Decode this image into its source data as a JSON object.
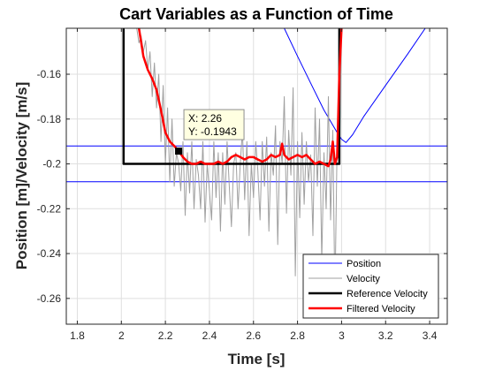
{
  "chart_data": {
    "type": "line",
    "title": "Cart Variables as a Function of Time",
    "xlabel": "Time [s]",
    "ylabel": "Position [m]/Velocity [m/s]",
    "xlim": [
      1.75,
      3.48
    ],
    "ylim": [
      -0.2715,
      -0.1395
    ],
    "xticks": [
      1.8,
      2,
      2.2,
      2.4,
      2.6,
      2.8,
      3,
      3.2,
      3.4
    ],
    "xtick_labels": [
      "1.8",
      "2",
      "2.2",
      "2.4",
      "2.6",
      "2.8",
      "3",
      "3.2",
      "3.4"
    ],
    "yticks": [
      -0.26,
      -0.24,
      -0.22,
      -0.2,
      -0.18,
      -0.16
    ],
    "ytick_labels": [
      "-0.26",
      "-0.24",
      "-0.22",
      "-0.2",
      "-0.18",
      "-0.16"
    ],
    "grid": true,
    "legend_position": "bottom-right",
    "series": [
      {
        "name": "Position",
        "color": "#0000ff",
        "width": 1,
        "segments": [
          [
            [
              1.75,
              -0.192
            ],
            [
              3.48,
              -0.192
            ]
          ],
          [
            [
              1.75,
              -0.208
            ],
            [
              3.48,
              -0.208
            ]
          ],
          [
            [
              2.74,
              -0.1395
            ],
            [
              2.8,
              -0.152
            ],
            [
              2.86,
              -0.164
            ],
            [
              2.92,
              -0.176
            ],
            [
              2.98,
              -0.186
            ],
            [
              3.0,
              -0.189
            ],
            [
              3.02,
              -0.1905
            ],
            [
              3.05,
              -0.187
            ],
            [
              3.1,
              -0.179
            ],
            [
              3.2,
              -0.165
            ],
            [
              3.3,
              -0.151
            ],
            [
              3.38,
              -0.1395
            ]
          ]
        ]
      },
      {
        "name": "Velocity",
        "color": "#a0a0a0",
        "width": 1,
        "segments": [
          [
            [
              2.07,
              -0.1395
            ],
            [
              2.08,
              -0.146
            ],
            [
              2.09,
              -0.143
            ],
            [
              2.1,
              -0.15
            ],
            [
              2.11,
              -0.145
            ],
            [
              2.12,
              -0.158
            ],
            [
              2.13,
              -0.15
            ],
            [
              2.14,
              -0.17
            ],
            [
              2.15,
              -0.155
            ],
            [
              2.16,
              -0.175
            ],
            [
              2.17,
              -0.16
            ],
            [
              2.18,
              -0.19
            ],
            [
              2.19,
              -0.165
            ],
            [
              2.2,
              -0.2
            ],
            [
              2.21,
              -0.175
            ],
            [
              2.22,
              -0.208
            ],
            [
              2.23,
              -0.18
            ],
            [
              2.24,
              -0.21
            ],
            [
              2.25,
              -0.195
            ],
            [
              2.26,
              -0.2
            ],
            [
              2.27,
              -0.212
            ],
            [
              2.28,
              -0.19
            ],
            [
              2.29,
              -0.223
            ],
            [
              2.3,
              -0.195
            ],
            [
              2.31,
              -0.213
            ],
            [
              2.32,
              -0.19
            ],
            [
              2.33,
              -0.22
            ],
            [
              2.34,
              -0.198
            ],
            [
              2.35,
              -0.205
            ],
            [
              2.36,
              -0.22
            ],
            [
              2.37,
              -0.19
            ],
            [
              2.38,
              -0.226
            ],
            [
              2.39,
              -0.2
            ],
            [
              2.4,
              -0.212
            ],
            [
              2.41,
              -0.225
            ],
            [
              2.42,
              -0.19
            ],
            [
              2.43,
              -0.215
            ],
            [
              2.44,
              -0.195
            ],
            [
              2.45,
              -0.23
            ],
            [
              2.46,
              -0.195
            ],
            [
              2.47,
              -0.218
            ],
            [
              2.48,
              -0.19
            ],
            [
              2.49,
              -0.21
            ],
            [
              2.5,
              -0.228
            ],
            [
              2.51,
              -0.2
            ],
            [
              2.52,
              -0.195
            ],
            [
              2.53,
              -0.22
            ],
            [
              2.54,
              -0.2
            ],
            [
              2.55,
              -0.185
            ],
            [
              2.56,
              -0.216
            ],
            [
              2.57,
              -0.19
            ],
            [
              2.58,
              -0.232
            ],
            [
              2.59,
              -0.2
            ],
            [
              2.6,
              -0.215
            ],
            [
              2.61,
              -0.19
            ],
            [
              2.62,
              -0.203
            ],
            [
              2.63,
              -0.225
            ],
            [
              2.64,
              -0.19
            ],
            [
              2.65,
              -0.21
            ],
            [
              2.66,
              -0.188
            ],
            [
              2.67,
              -0.23
            ],
            [
              2.68,
              -0.195
            ],
            [
              2.69,
              -0.205
            ],
            [
              2.7,
              -0.183
            ],
            [
              2.71,
              -0.236
            ],
            [
              2.72,
              -0.19
            ],
            [
              2.73,
              -0.2
            ],
            [
              2.74,
              -0.17
            ],
            [
              2.75,
              -0.222
            ],
            [
              2.76,
              -0.185
            ],
            [
              2.77,
              -0.205
            ],
            [
              2.78,
              -0.166
            ],
            [
              2.79,
              -0.25
            ],
            [
              2.8,
              -0.19
            ],
            [
              2.81,
              -0.224
            ],
            [
              2.82,
              -0.186
            ],
            [
              2.83,
              -0.218
            ],
            [
              2.84,
              -0.19
            ],
            [
              2.85,
              -0.208
            ],
            [
              2.86,
              -0.196
            ],
            [
              2.87,
              -0.232
            ],
            [
              2.88,
              -0.175
            ],
            [
              2.89,
              -0.21
            ],
            [
              2.9,
              -0.18
            ],
            [
              2.91,
              -0.243
            ],
            [
              2.92,
              -0.195
            ],
            [
              2.93,
              -0.22
            ],
            [
              2.94,
              -0.17
            ],
            [
              2.95,
              -0.225
            ],
            [
              2.96,
              -0.185
            ],
            [
              2.97,
              -0.26
            ],
            [
              2.98,
              -0.19
            ],
            [
              2.99,
              -0.2
            ],
            [
              3.0,
              -0.1395
            ]
          ]
        ]
      },
      {
        "name": "Reference Velocity",
        "color": "#000000",
        "width": 2.5,
        "segments": [
          [
            [
              2.01,
              -0.1395
            ],
            [
              2.01,
              -0.2
            ],
            [
              2.99,
              -0.2
            ],
            [
              2.99,
              -0.1395
            ]
          ]
        ]
      },
      {
        "name": "Filtered Velocity",
        "color": "#ff0000",
        "width": 2.5,
        "segments": [
          [
            [
              2.08,
              -0.1395
            ],
            [
              2.1,
              -0.152
            ],
            [
              2.12,
              -0.158
            ],
            [
              2.14,
              -0.162
            ],
            [
              2.16,
              -0.167
            ],
            [
              2.18,
              -0.176
            ],
            [
              2.2,
              -0.186
            ],
            [
              2.22,
              -0.19
            ],
            [
              2.24,
              -0.192
            ],
            [
              2.26,
              -0.1943
            ],
            [
              2.28,
              -0.197
            ],
            [
              2.3,
              -0.199
            ],
            [
              2.32,
              -0.2
            ],
            [
              2.34,
              -0.2
            ],
            [
              2.36,
              -0.199
            ],
            [
              2.38,
              -0.2
            ],
            [
              2.4,
              -0.2
            ],
            [
              2.42,
              -0.2
            ],
            [
              2.44,
              -0.199
            ],
            [
              2.46,
              -0.2
            ],
            [
              2.48,
              -0.199
            ],
            [
              2.5,
              -0.197
            ],
            [
              2.52,
              -0.196
            ],
            [
              2.54,
              -0.197
            ],
            [
              2.56,
              -0.198
            ],
            [
              2.58,
              -0.197
            ],
            [
              2.6,
              -0.197
            ],
            [
              2.62,
              -0.198
            ],
            [
              2.64,
              -0.199
            ],
            [
              2.66,
              -0.198
            ],
            [
              2.68,
              -0.196
            ],
            [
              2.7,
              -0.197
            ],
            [
              2.72,
              -0.196
            ],
            [
              2.73,
              -0.191
            ],
            [
              2.74,
              -0.196
            ],
            [
              2.76,
              -0.198
            ],
            [
              2.78,
              -0.197
            ],
            [
              2.8,
              -0.196
            ],
            [
              2.82,
              -0.197
            ],
            [
              2.84,
              -0.196
            ],
            [
              2.86,
              -0.198
            ],
            [
              2.88,
              -0.2
            ],
            [
              2.9,
              -0.199
            ],
            [
              2.92,
              -0.2
            ],
            [
              2.94,
              -0.201
            ],
            [
              2.95,
              -0.198
            ],
            [
              2.96,
              -0.19
            ],
            [
              2.97,
              -0.2
            ],
            [
              2.98,
              -0.197
            ],
            [
              2.99,
              -0.16
            ],
            [
              3.0,
              -0.1395
            ]
          ]
        ]
      }
    ],
    "datatip": {
      "x": 2.26,
      "y": -0.1943,
      "x_label": "X: 2.26",
      "y_label": "Y: -0.1943"
    }
  }
}
